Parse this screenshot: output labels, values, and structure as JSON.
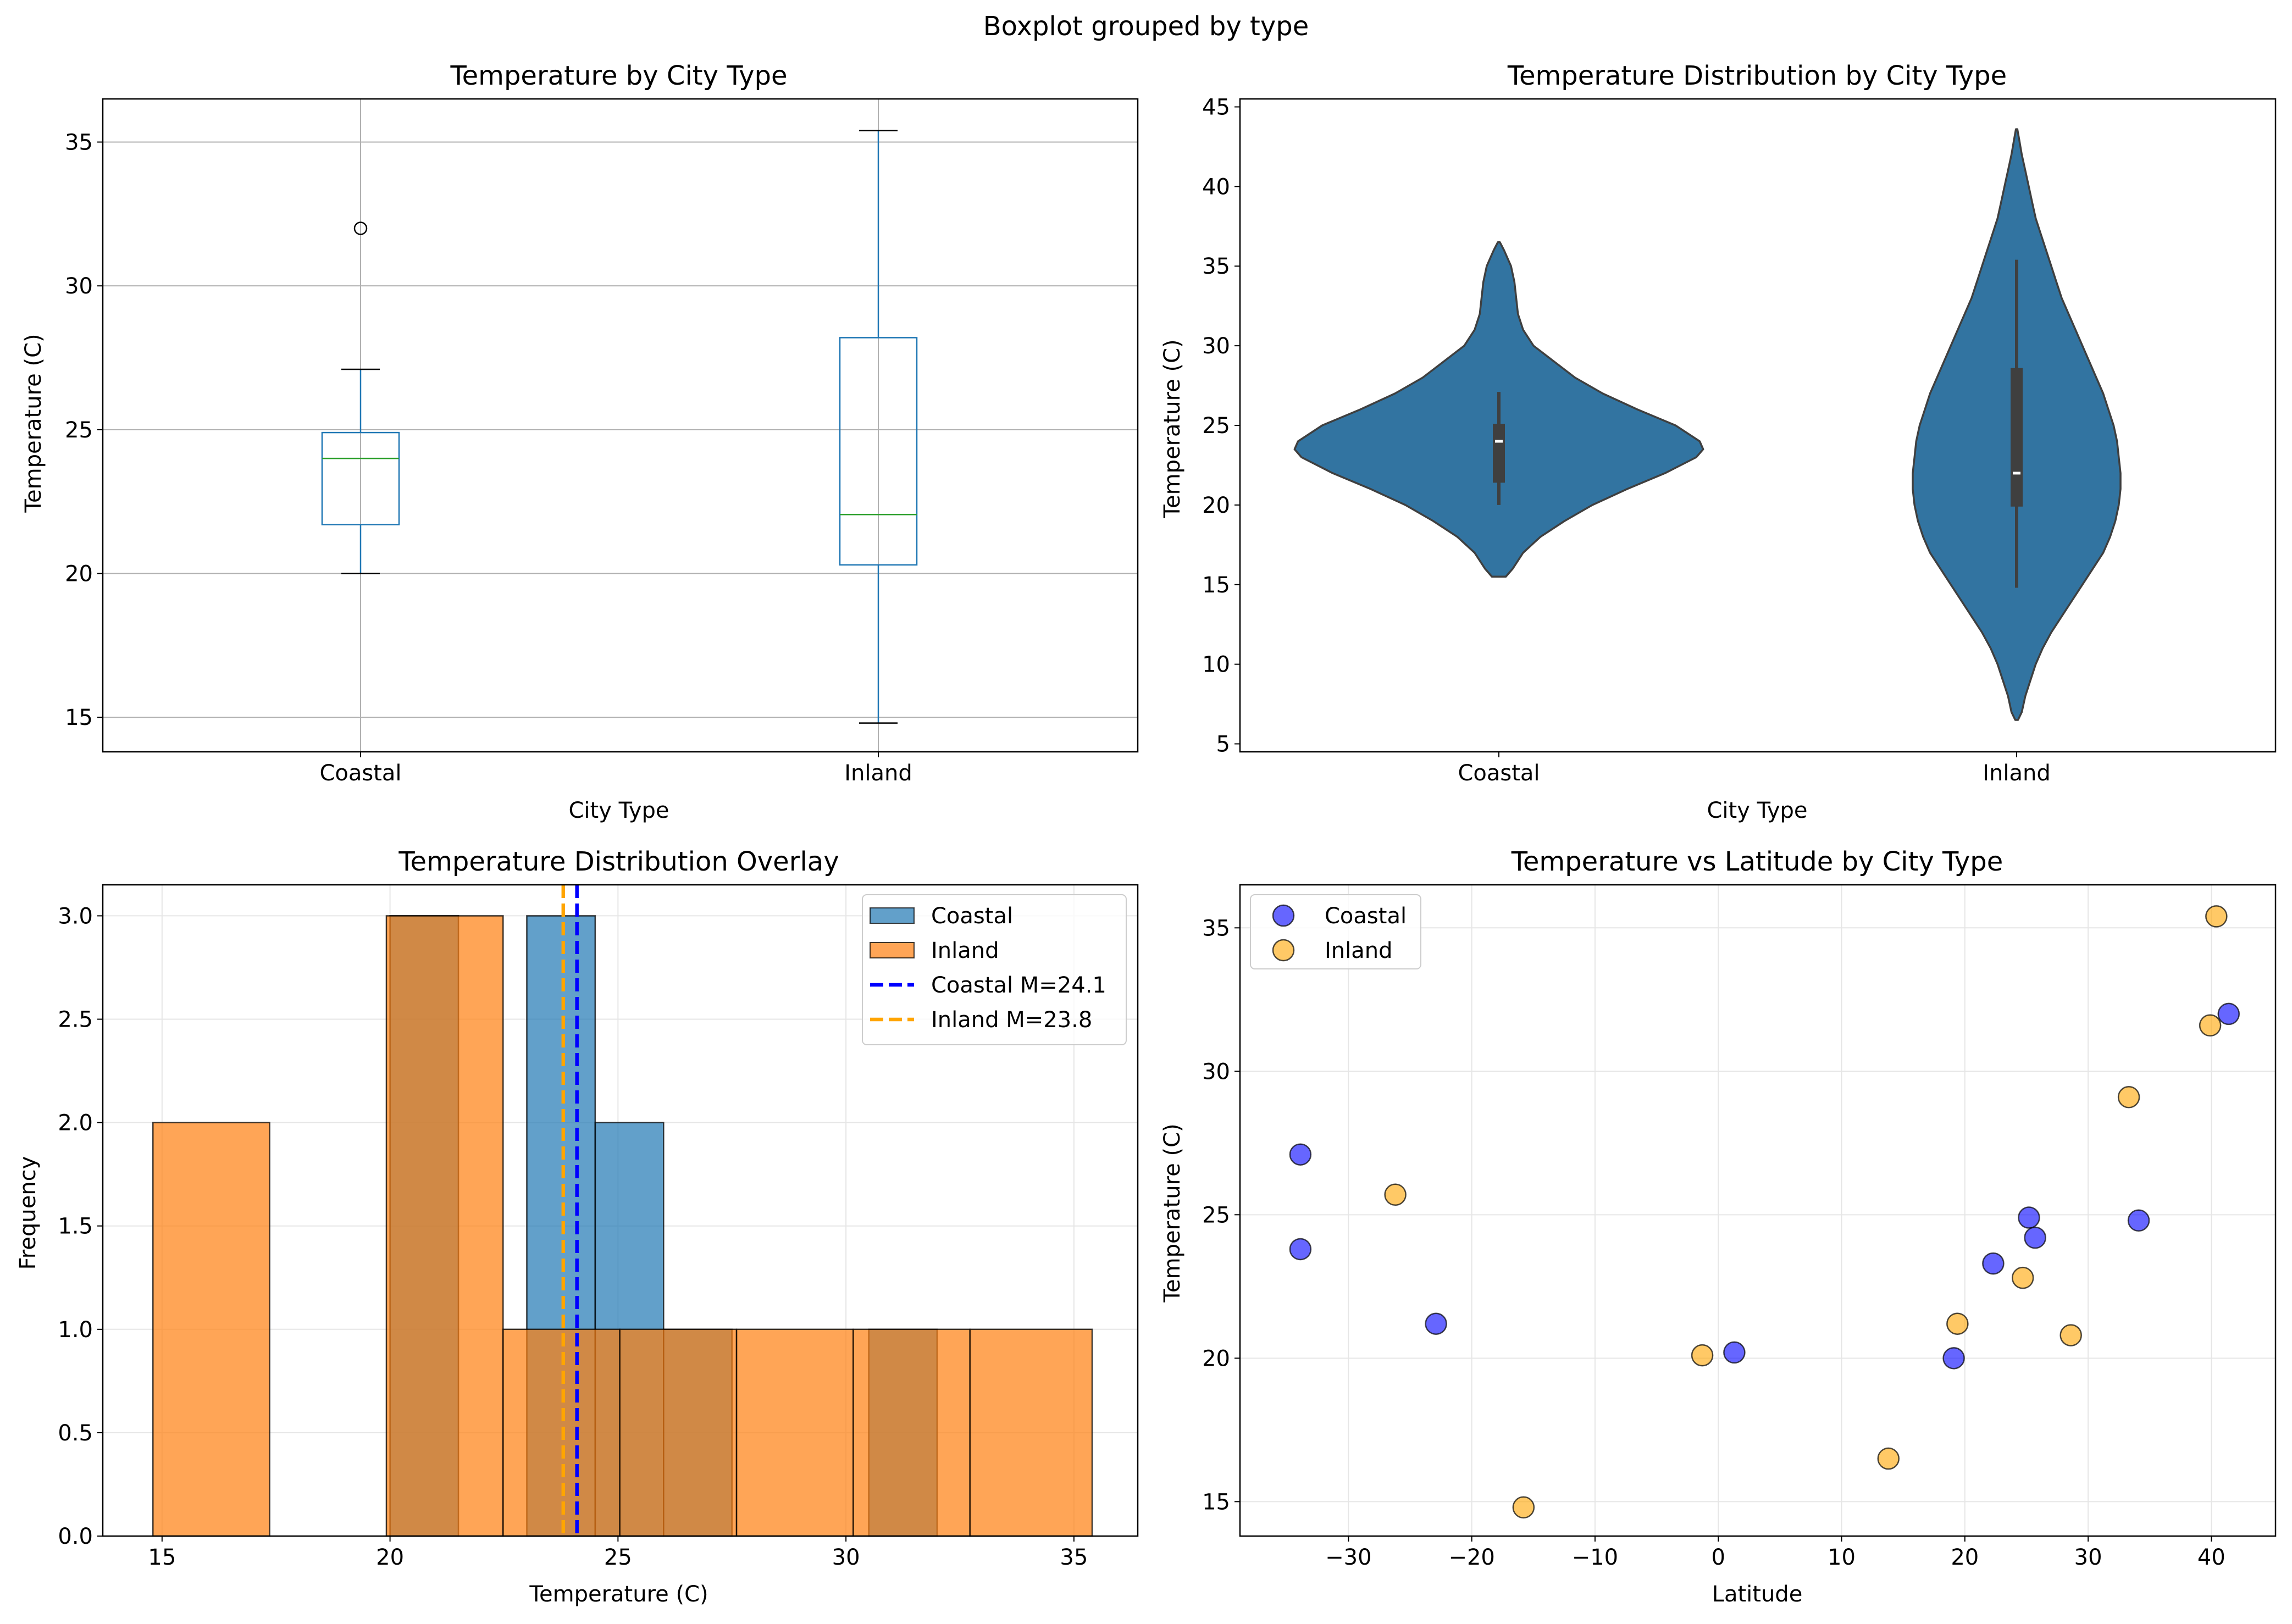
{
  "figure": {
    "suptitle": "Boxplot grouped by type"
  },
  "colors": {
    "coastal_hist": "#1f77b4",
    "inland_hist": "#ff7f0e",
    "violin": "#3274a1",
    "coastal_mean_line": "#0000ff",
    "inland_mean_line": "#ffa500",
    "scatter_coastal": "#0000ff",
    "scatter_inland": "#ffa500",
    "box": "#1f77b4",
    "median": "#2ca02c"
  },
  "chart_data": [
    {
      "id": "boxplot",
      "type": "box",
      "title": "Temperature by City Type",
      "xlabel": "City Type",
      "ylabel": "Temperature (C)",
      "ylim": [
        13.8,
        36.5
      ],
      "yticks": [
        15,
        20,
        25,
        30,
        35
      ],
      "grid": true,
      "categories": [
        "Coastal",
        "Inland"
      ],
      "boxes": [
        {
          "name": "Coastal",
          "whisker_low": 20.0,
          "q1": 21.7,
          "median": 24.0,
          "q3": 24.9,
          "whisker_high": 27.1,
          "outliers": [
            32.0
          ]
        },
        {
          "name": "Inland",
          "whisker_low": 14.8,
          "q1": 20.3,
          "median": 22.05,
          "q3": 28.2,
          "whisker_high": 35.4,
          "outliers": []
        }
      ]
    },
    {
      "id": "violin",
      "type": "violin",
      "title": "Temperature Distribution by City Type",
      "xlabel": "City Type",
      "ylabel": "Temperature (C)",
      "ylim": [
        4.5,
        45.5
      ],
      "yticks": [
        5,
        10,
        15,
        20,
        25,
        30,
        35,
        40,
        45
      ],
      "grid": false,
      "categories": [
        "Coastal",
        "Inland"
      ],
      "violins": [
        {
          "name": "Coastal",
          "profile": [
            [
              15.5,
              0.02
            ],
            [
              16,
              0.04
            ],
            [
              17,
              0.07
            ],
            [
              18,
              0.12
            ],
            [
              19,
              0.19
            ],
            [
              20,
              0.27
            ],
            [
              21,
              0.37
            ],
            [
              22,
              0.48
            ],
            [
              23,
              0.57
            ],
            [
              23.5,
              0.59
            ],
            [
              24,
              0.58
            ],
            [
              25,
              0.51
            ],
            [
              26,
              0.4
            ],
            [
              27,
              0.3
            ],
            [
              28,
              0.22
            ],
            [
              29,
              0.16
            ],
            [
              30,
              0.1
            ],
            [
              31,
              0.07
            ],
            [
              32,
              0.055
            ],
            [
              33,
              0.05
            ],
            [
              34,
              0.045
            ],
            [
              35,
              0.035
            ],
            [
              36,
              0.015
            ],
            [
              36.5,
              0.003
            ]
          ],
          "whisker": [
            20.0,
            27.1
          ],
          "q1": 21.4,
          "q3": 25.1,
          "median": 24.0
        },
        {
          "name": "Inland",
          "profile": [
            [
              6.5,
              0.004
            ],
            [
              7,
              0.015
            ],
            [
              8,
              0.025
            ],
            [
              9,
              0.04
            ],
            [
              10,
              0.055
            ],
            [
              11,
              0.075
            ],
            [
              12,
              0.1
            ],
            [
              13,
              0.13
            ],
            [
              14,
              0.16
            ],
            [
              15,
              0.19
            ],
            [
              16,
              0.22
            ],
            [
              17,
              0.25
            ],
            [
              18,
              0.27
            ],
            [
              19,
              0.285
            ],
            [
              20,
              0.295
            ],
            [
              21,
              0.3
            ],
            [
              22,
              0.3
            ],
            [
              23,
              0.295
            ],
            [
              24,
              0.29
            ],
            [
              25,
              0.28
            ],
            [
              26,
              0.265
            ],
            [
              27,
              0.25
            ],
            [
              28,
              0.23
            ],
            [
              29,
              0.21
            ],
            [
              30,
              0.19
            ],
            [
              31,
              0.17
            ],
            [
              32,
              0.15
            ],
            [
              33,
              0.13
            ],
            [
              34,
              0.115
            ],
            [
              35,
              0.1
            ],
            [
              36,
              0.085
            ],
            [
              37,
              0.07
            ],
            [
              38,
              0.055
            ],
            [
              39,
              0.045
            ],
            [
              40,
              0.035
            ],
            [
              41,
              0.025
            ],
            [
              42,
              0.015
            ],
            [
              43,
              0.007
            ],
            [
              43.6,
              0.002
            ]
          ],
          "whisker": [
            14.8,
            35.4
          ],
          "q1": 19.9,
          "q3": 28.6,
          "median": 22.0
        }
      ]
    },
    {
      "id": "histogram",
      "type": "bar",
      "title": "Temperature Distribution Overlay",
      "xlabel": "Temperature (C)",
      "ylabel": "Frequency",
      "xlim": [
        13.7,
        36.4
      ],
      "ylim": [
        0,
        3.15
      ],
      "xticks": [
        15,
        20,
        25,
        30,
        35
      ],
      "yticks": [
        0.0,
        0.5,
        1.0,
        1.5,
        2.0,
        2.5,
        3.0
      ],
      "grid": true,
      "legend": "top-right",
      "series": [
        {
          "name": "Coastal",
          "bins": [
            [
              20.0,
              21.5,
              3
            ],
            [
              21.5,
              23.0,
              0
            ],
            [
              23.0,
              24.5,
              3
            ],
            [
              24.5,
              26.0,
              2
            ],
            [
              26.0,
              27.5,
              1
            ],
            [
              27.5,
              29.0,
              0
            ],
            [
              29.0,
              30.5,
              0
            ],
            [
              30.5,
              32.0,
              1
            ]
          ]
        },
        {
          "name": "Inland",
          "bins": [
            [
              14.8,
              17.36,
              2
            ],
            [
              17.36,
              19.92,
              0
            ],
            [
              19.92,
              22.48,
              3
            ],
            [
              22.48,
              25.04,
              1
            ],
            [
              25.04,
              27.6,
              1
            ],
            [
              27.6,
              30.16,
              1
            ],
            [
              30.16,
              32.72,
              1
            ],
            [
              32.72,
              35.4,
              1
            ]
          ]
        }
      ],
      "mean_lines": [
        {
          "name": "Coastal M=24.1",
          "value": 24.1
        },
        {
          "name": "Inland M=23.8",
          "value": 23.8
        }
      ]
    },
    {
      "id": "scatter",
      "type": "scatter",
      "title": "Temperature vs Latitude by City Type",
      "xlabel": "Latitude",
      "ylabel": "Temperature (C)",
      "xlim": [
        -38.8,
        45.2
      ],
      "ylim": [
        13.8,
        36.5
      ],
      "xticks": [
        -30,
        -20,
        -10,
        0,
        10,
        20,
        30,
        40
      ],
      "xticklabels": [
        "−30",
        "−20",
        "−10",
        "0",
        "10",
        "20",
        "30",
        "40"
      ],
      "yticks": [
        15,
        20,
        25,
        30,
        35
      ],
      "grid": true,
      "legend": "top-left",
      "series": [
        {
          "name": "Coastal",
          "points": [
            [
              -33.9,
              27.1
            ],
            [
              -33.9,
              23.8
            ],
            [
              -22.9,
              21.2
            ],
            [
              1.3,
              20.2
            ],
            [
              19.1,
              20.0
            ],
            [
              22.3,
              23.3
            ],
            [
              25.2,
              24.9
            ],
            [
              25.7,
              24.2
            ],
            [
              34.1,
              24.8
            ],
            [
              41.4,
              32.0
            ]
          ]
        },
        {
          "name": "Inland",
          "points": [
            [
              -26.2,
              25.7
            ],
            [
              -15.8,
              14.8
            ],
            [
              -1.3,
              20.1
            ],
            [
              13.8,
              16.5
            ],
            [
              19.4,
              21.2
            ],
            [
              24.7,
              22.8
            ],
            [
              28.6,
              20.8
            ],
            [
              33.3,
              29.1
            ],
            [
              39.9,
              31.6
            ],
            [
              40.4,
              35.4
            ]
          ]
        }
      ]
    }
  ]
}
